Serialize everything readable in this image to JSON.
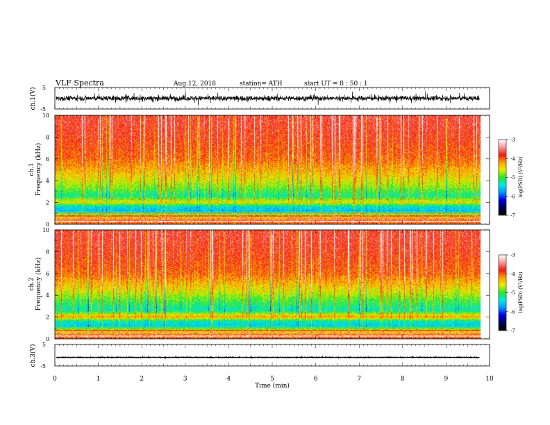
{
  "header": {
    "title": "VLF  Spectra",
    "date": "Aug.12, 2018",
    "station": "station= ATH",
    "start": "start  UT  =   8  : 50 : 1"
  },
  "colorbar": {
    "label": "log(PSD) (V²/Hz)",
    "ticks": [
      "-3",
      "-4",
      "-5",
      "-6",
      "-7"
    ],
    "range": [
      -7,
      -3
    ]
  },
  "chart_data": {
    "type": "heatmap",
    "xlabel": "Time  (min)",
    "xlim": [
      0,
      10
    ],
    "xticks": [
      "0",
      "1",
      "2",
      "3",
      "4",
      "5",
      "6",
      "7",
      "8",
      "9",
      "10"
    ],
    "data_end_min": 9.8,
    "panels": [
      {
        "id": "ch1-waveform",
        "type": "line",
        "ylabel": "ch.1(V)",
        "ylim": [
          -5,
          5
        ],
        "yticks": [
          "5",
          "-5"
        ],
        "approx_amplitude_V": 2.5
      },
      {
        "id": "ch1-spectrogram",
        "type": "heatmap",
        "ylabel": "ch.1",
        "ylabel2": "Frequency  (kHz)",
        "ylim": [
          0,
          10
        ],
        "yticks": [
          "0",
          "2",
          "4",
          "6",
          "8",
          "10"
        ],
        "approx_log_psd_by_freq_khz": [
          {
            "f": 0.3,
            "v": -4.0
          },
          {
            "f": 0.8,
            "v": -4.6
          },
          {
            "f": 1.2,
            "v": -5.6
          },
          {
            "f": 1.6,
            "v": -5.4
          },
          {
            "f": 2.0,
            "v": -4.5
          },
          {
            "f": 2.6,
            "v": -5.2
          },
          {
            "f": 3.4,
            "v": -4.8
          },
          {
            "f": 4.5,
            "v": -4.4
          },
          {
            "f": 6.0,
            "v": -4.0
          },
          {
            "f": 8.0,
            "v": -3.8
          },
          {
            "f": 9.5,
            "v": -3.7
          }
        ]
      },
      {
        "id": "ch2-spectrogram",
        "type": "heatmap",
        "ylabel": "ch.2",
        "ylabel2": "Frequency  (kHz)",
        "ylim": [
          0,
          10
        ],
        "yticks": [
          "0",
          "2",
          "4",
          "6",
          "8",
          "10"
        ],
        "approx_log_psd_by_freq_khz": [
          {
            "f": 0.3,
            "v": -4.0
          },
          {
            "f": 0.8,
            "v": -4.8
          },
          {
            "f": 1.2,
            "v": -5.5
          },
          {
            "f": 1.6,
            "v": -5.3
          },
          {
            "f": 2.0,
            "v": -4.2
          },
          {
            "f": 2.6,
            "v": -5.3
          },
          {
            "f": 3.4,
            "v": -5.0
          },
          {
            "f": 4.5,
            "v": -4.5
          },
          {
            "f": 6.0,
            "v": -4.0
          },
          {
            "f": 8.0,
            "v": -3.8
          },
          {
            "f": 9.5,
            "v": -3.7
          }
        ]
      },
      {
        "id": "ch3-waveform",
        "type": "line",
        "ylabel": "ch.3(V)",
        "ylim": [
          -5,
          5
        ],
        "yticks": [
          "5",
          "-5"
        ],
        "approx_mean_V": -1.0,
        "approx_amplitude_V": 0.3
      }
    ]
  }
}
